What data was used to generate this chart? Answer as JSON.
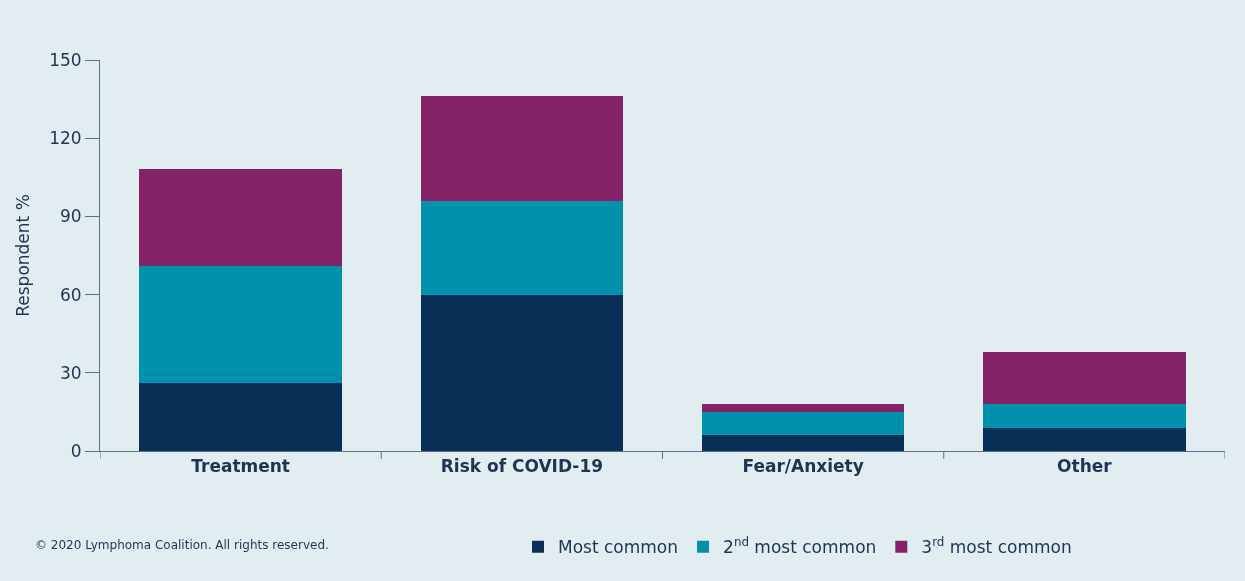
{
  "chart_data": {
    "type": "bar",
    "stacked": true,
    "ylabel": "Respondent %",
    "categories": [
      "Treatment",
      "Risk of COVID-19",
      "Fear/Anxiety",
      "Other"
    ],
    "series": [
      {
        "name": "Most common",
        "color": "#0a2f57",
        "values": [
          26,
          60,
          6,
          9
        ]
      },
      {
        "name": "2$^{nd}$ most common",
        "color": "#0091ad",
        "values": [
          45,
          36,
          9,
          9
        ]
      },
      {
        "name": "3$^{rd}$ most common",
        "color": "#842466",
        "values": [
          37,
          40,
          3,
          20
        ]
      }
    ],
    "ylim": [
      0,
      150
    ],
    "yticks": [
      0,
      30,
      60,
      90,
      120,
      150
    ],
    "grid": false,
    "legend": "bottom",
    "annotations": [
      "© 2020 Lymphoma Coalition. All rights reserved."
    ]
  }
}
